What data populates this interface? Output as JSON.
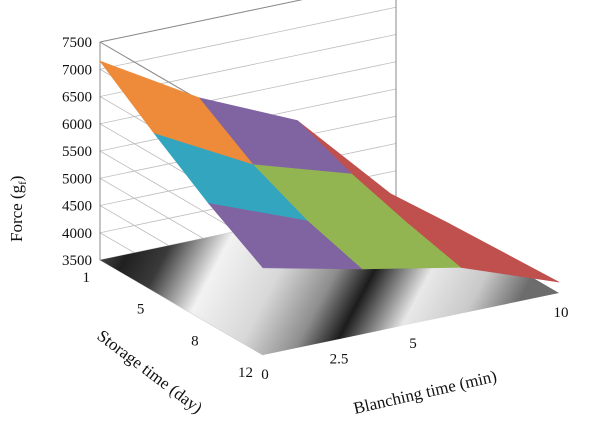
{
  "chart_data": {
    "type": "surface",
    "zlabel": "Force (g",
    "zlabel_sub": "f",
    "zlabel_close": ")",
    "xlabel": "Blanching time (min)",
    "ylabel": "Storage time (day)",
    "zlim": [
      3500,
      7500
    ],
    "z_ticks": [
      "7500",
      "7000",
      "6500",
      "6000",
      "5500",
      "5000",
      "4500",
      "4000",
      "3500"
    ],
    "x_ticks": [
      "0",
      "2.5",
      "5",
      "10"
    ],
    "y_ticks": [
      "1",
      "5",
      "8",
      "12"
    ],
    "blanching_time_min": [
      0,
      2.5,
      5,
      10
    ],
    "storage_time_day": [
      1,
      5,
      8,
      12
    ],
    "series": [
      {
        "storage_day": 1,
        "values": [
          7150,
          6100,
          5300,
          3500
        ]
      },
      {
        "storage_day": 5,
        "values": [
          6400,
          5450,
          4900,
          3600
        ]
      },
      {
        "storage_day": 8,
        "values": [
          5700,
          5000,
          4600,
          3650
        ]
      },
      {
        "storage_day": 12,
        "values": [
          5100,
          4700,
          4350,
          3700
        ]
      }
    ],
    "color_bands": [
      {
        "from": 3500,
        "to": 4000,
        "color": "#b5403c"
      },
      {
        "from": 4000,
        "to": 4500,
        "color": "#c0504d"
      },
      {
        "from": 4500,
        "to": 5000,
        "color": "#92b552"
      },
      {
        "from": 5000,
        "to": 5500,
        "color": "#8064a2"
      },
      {
        "from": 5500,
        "to": 6000,
        "color": "#33a5bf"
      },
      {
        "from": 6000,
        "to": 6500,
        "color": "#ee8b3a"
      },
      {
        "from": 6500,
        "to": 7000,
        "color": "#9bb4de"
      },
      {
        "from": 7000,
        "to": 7500,
        "color": "#9bb4de"
      }
    ],
    "grid": true
  }
}
